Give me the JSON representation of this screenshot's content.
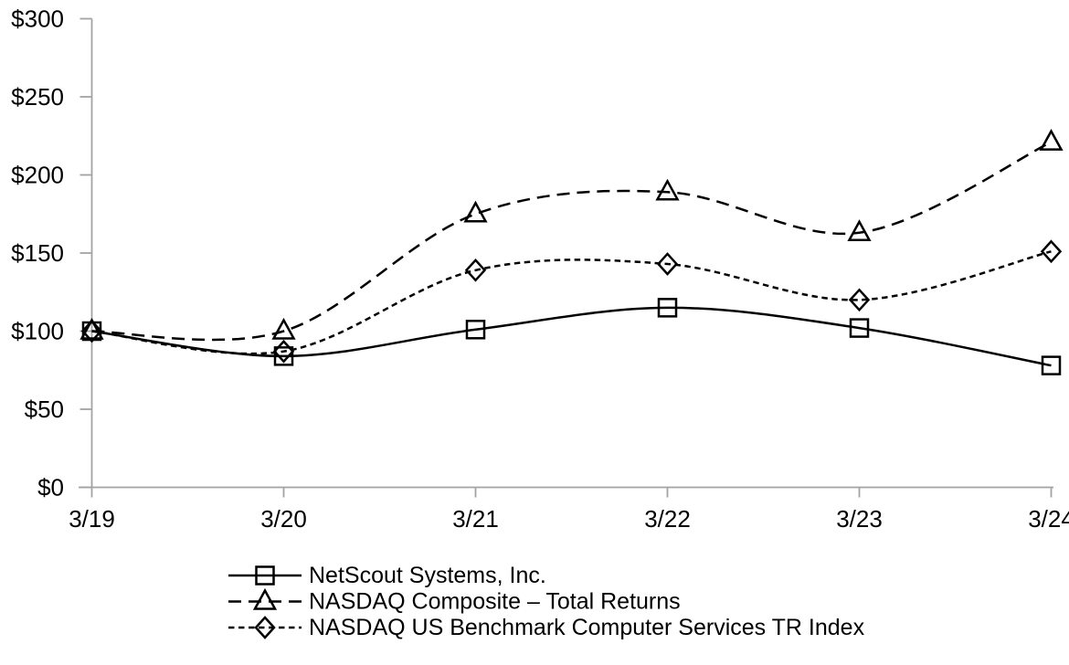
{
  "chart_data": {
    "type": "line",
    "title": "",
    "xlabel": "",
    "ylabel": "",
    "x_categories": [
      "3/19",
      "3/20",
      "3/21",
      "3/22",
      "3/23",
      "3/24"
    ],
    "y_tick_labels": [
      "$0",
      "$50",
      "$100",
      "$150",
      "$200",
      "$250",
      "$300"
    ],
    "y_tick_values": [
      0,
      50,
      100,
      150,
      200,
      250,
      300
    ],
    "ylim": [
      0,
      300
    ],
    "grid": false,
    "legend_position": "bottom-left",
    "line_smoothing": true,
    "series": [
      {
        "id": "netscout",
        "name": "NetScout Systems, Inc.",
        "marker": "square",
        "line_style": "solid",
        "values": [
          100,
          84,
          101,
          115,
          102,
          78
        ]
      },
      {
        "id": "nasdaq-composite",
        "name": "NASDAQ Composite – Total Returns",
        "marker": "triangle",
        "line_style": "long-dash",
        "values": [
          100,
          100,
          175,
          189,
          163,
          221
        ]
      },
      {
        "id": "nasdaq-benchmark",
        "name": "NASDAQ US Benchmark Computer Services TR Index",
        "marker": "diamond",
        "line_style": "short-dash",
        "values": [
          100,
          87,
          139,
          143,
          120,
          151
        ]
      }
    ],
    "colors": {
      "line": "#000000",
      "axis": "#a3a3a3",
      "text": "#000000",
      "background": "#ffffff"
    }
  }
}
